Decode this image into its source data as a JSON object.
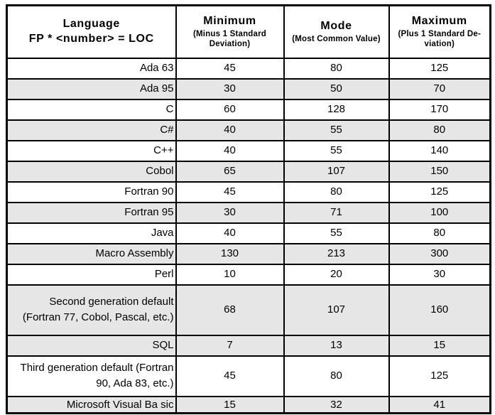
{
  "colors": {
    "row_shade": "#e6e6e6",
    "border": "#000000",
    "text": "#000000",
    "background": "#ffffff"
  },
  "table": {
    "header": {
      "language": {
        "title": "Language",
        "subtitle": "FP * <number> = LOC"
      },
      "minimum": {
        "title": "Minimum",
        "subtitle": "(Minus 1 Standard\nDeviation)"
      },
      "mode": {
        "title": "Mode",
        "subtitle": "(Most Common Value)"
      },
      "maximum": {
        "title": "Maximum",
        "subtitle": "(Plus 1 Standard De-\nviation)"
      }
    },
    "rows": [
      {
        "language": "Ada 63",
        "min": 45,
        "mode": 80,
        "max": 125
      },
      {
        "language": "Ada 95",
        "min": 30,
        "mode": 50,
        "max": 70
      },
      {
        "language": "C",
        "min": 60,
        "mode": 128,
        "max": 170
      },
      {
        "language": "C#",
        "min": 40,
        "mode": 55,
        "max": 80
      },
      {
        "language": "C++",
        "min": 40,
        "mode": 55,
        "max": 140
      },
      {
        "language": "Cobol",
        "min": 65,
        "mode": 107,
        "max": 150
      },
      {
        "language": "Fortran 90",
        "min": 45,
        "mode": 80,
        "max": 125
      },
      {
        "language": "Fortran 95",
        "min": 30,
        "mode": 71,
        "max": 100
      },
      {
        "language": "Java",
        "min": 40,
        "mode": 55,
        "max": 80
      },
      {
        "language": "Macro Assembly",
        "min": 130,
        "mode": 213,
        "max": 300
      },
      {
        "language": "Perl",
        "min": 10,
        "mode": 20,
        "max": 30
      },
      {
        "language": "Second generation default (Fortran 77, Cobol, Pascal, etc.)",
        "min": 68,
        "mode": 107,
        "max": 160
      },
      {
        "language": "SQL",
        "min": 7,
        "mode": 13,
        "max": 15
      },
      {
        "language": "Third generation default (Fortran 90, Ada 83, etc.)",
        "min": 45,
        "mode": 80,
        "max": 125
      },
      {
        "language": "Microsoft Visual Ba sic",
        "min": 15,
        "mode": 32,
        "max": 41
      }
    ]
  }
}
